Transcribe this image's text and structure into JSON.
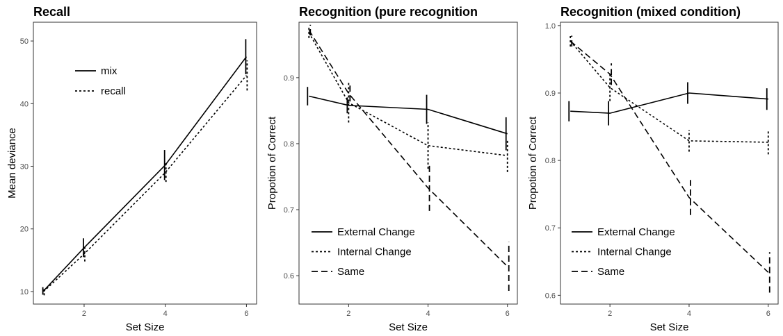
{
  "chart_data": [
    {
      "type": "line",
      "title": "Recall",
      "xlabel": "Set Size",
      "ylabel": "Mean deviance",
      "xlim": [
        0.75,
        6.25
      ],
      "ylim": [
        8,
        53
      ],
      "xticks": [
        2,
        4,
        6
      ],
      "yticks": [
        10,
        20,
        30,
        40,
        50
      ],
      "ytick_labels": [
        "10",
        "20",
        "30",
        "40",
        "50"
      ],
      "grid": false,
      "legend_position": "top-left",
      "x": [
        1,
        2,
        4,
        6
      ],
      "series": [
        {
          "name": "mix",
          "dash": "solid",
          "values": [
            10.1,
            17.0,
            30.2,
            47.5
          ],
          "err": [
            0.6,
            1.5,
            2.4,
            2.8
          ]
        },
        {
          "name": "recall",
          "dash": "dotted",
          "values": [
            10.0,
            16.0,
            29.0,
            44.5
          ],
          "err": [
            0.6,
            1.2,
            1.5,
            2.4
          ]
        }
      ]
    },
    {
      "type": "line",
      "title": "Recognition (pure recognition",
      "xlabel": "Set Size",
      "ylabel": "Propotion of Correct",
      "xlim": [
        0.75,
        6.25
      ],
      "ylim": [
        0.557,
        0.984
      ],
      "xticks": [
        2,
        4,
        6
      ],
      "yticks": [
        0.6,
        0.7,
        0.8,
        0.9
      ],
      "ytick_labels": [
        "0.6",
        "0.7",
        "0.8",
        "0.9"
      ],
      "grid": false,
      "legend_position": "bottom-left",
      "x": [
        1,
        2,
        4,
        6
      ],
      "series": [
        {
          "name": "External Change",
          "dash": "solid",
          "values": [
            0.872,
            0.858,
            0.852,
            0.815
          ],
          "err": [
            0.014,
            0.012,
            0.022,
            0.025
          ]
        },
        {
          "name": "Internal Change",
          "dash": "dotted",
          "values": [
            0.968,
            0.862,
            0.797,
            0.782
          ],
          "err": [
            0.008,
            0.03,
            0.035,
            0.025
          ]
        },
        {
          "name": "Same",
          "dash": "dashed",
          "values": [
            0.972,
            0.876,
            0.733,
            0.614
          ],
          "err": [
            0.008,
            0.012,
            0.035,
            0.037
          ]
        }
      ]
    },
    {
      "type": "line",
      "title": "Recognition (mixed condition)",
      "xlabel": "Set Size",
      "ylabel": "Propotion of Correct",
      "xlim": [
        0.75,
        6.25
      ],
      "ylim": [
        0.587,
        1.005
      ],
      "xticks": [
        2,
        4,
        6
      ],
      "yticks": [
        0.6,
        0.7,
        0.8,
        0.9,
        1.0
      ],
      "ytick_labels": [
        "0.6",
        "0.7",
        "0.8",
        "0.9",
        "1.0"
      ],
      "grid": false,
      "legend_position": "bottom-left",
      "x": [
        1,
        2,
        4,
        6
      ],
      "series": [
        {
          "name": "External Change",
          "dash": "solid",
          "values": [
            0.873,
            0.87,
            0.9,
            0.891
          ],
          "err": [
            0.015,
            0.018,
            0.016,
            0.016
          ]
        },
        {
          "name": "Internal Change",
          "dash": "dotted",
          "values": [
            0.977,
            0.908,
            0.829,
            0.827
          ],
          "err": [
            0.008,
            0.02,
            0.016,
            0.018
          ]
        },
        {
          "name": "Same",
          "dash": "dashed",
          "values": [
            0.977,
            0.928,
            0.745,
            0.634
          ],
          "err": [
            0.008,
            0.016,
            0.026,
            0.03
          ]
        }
      ]
    }
  ]
}
